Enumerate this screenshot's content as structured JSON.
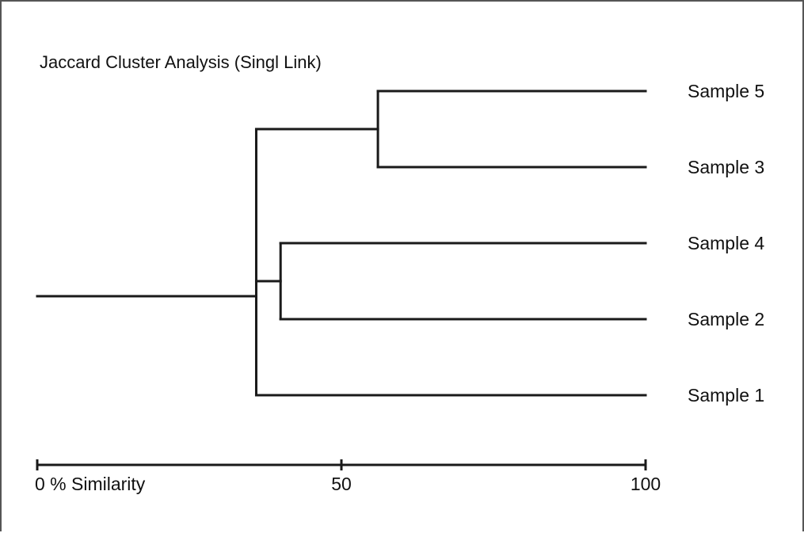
{
  "title": "Jaccard Cluster Analysis (Singl Link)",
  "colors": {
    "line": "#1a1a1a",
    "text": "#111111",
    "background": "#ffffff"
  },
  "axis": {
    "min": 0,
    "max": 100,
    "ticks": [
      {
        "value": 0,
        "label": "0 % Similarity"
      },
      {
        "value": 50,
        "label": "50"
      },
      {
        "value": 100,
        "label": "100"
      }
    ]
  },
  "leaves": [
    {
      "id": "s5",
      "label": "Sample 5"
    },
    {
      "id": "s3",
      "label": "Sample 3"
    },
    {
      "id": "s4",
      "label": "Sample 4"
    },
    {
      "id": "s2",
      "label": "Sample 2"
    },
    {
      "id": "s1",
      "label": "Sample 1"
    }
  ],
  "merges": [
    {
      "id": "c53",
      "children": [
        "s5",
        "s3"
      ],
      "similarity": 56
    },
    {
      "id": "c42",
      "children": [
        "s4",
        "s2"
      ],
      "similarity": 40
    },
    {
      "id": "root",
      "children": [
        "c53",
        "c42",
        "s1"
      ],
      "similarity": 36
    }
  ],
  "root_similarity": 0
}
